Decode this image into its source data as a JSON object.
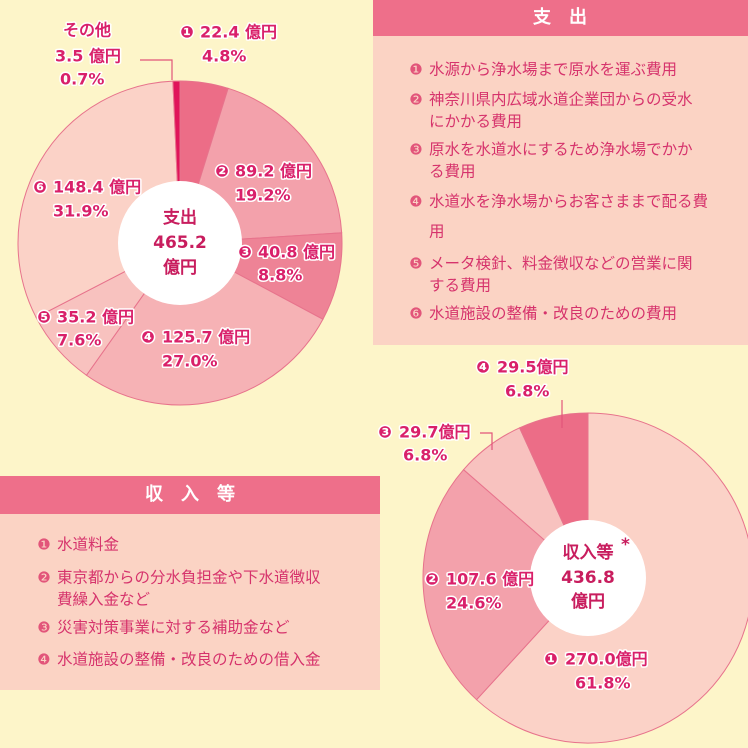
{
  "chart_data": [
    {
      "type": "pie",
      "center_title": "支出",
      "total": 465.2,
      "total_unit": "億円",
      "categories": [
        "❶",
        "❷",
        "❸",
        "❹",
        "❺",
        "❻",
        "その他"
      ],
      "values": [
        4.8,
        19.2,
        8.8,
        27.0,
        7.6,
        31.9,
        0.7
      ],
      "value_labels": [
        "4.8%",
        "19.2%",
        "8.8%",
        "27.0%",
        "7.6%",
        "31.9%",
        "0.7%"
      ],
      "amounts": [
        22.4,
        89.2,
        40.8,
        125.7,
        35.2,
        148.4,
        3.5
      ],
      "amount_labels": [
        "22.4 億円",
        "89.2 億円",
        "40.8 億円",
        "125.7 億円",
        "35.2 億円",
        "148.4 億円",
        "3.5 億円"
      ],
      "colors": [
        "#ec6d87",
        "#f3a1ab",
        "#ee8396",
        "#f6b2b5",
        "#f8c2bf",
        "#fbd2c7",
        "#e0145a"
      ]
    },
    {
      "type": "pie",
      "center_title": "収入等",
      "center_note": "*",
      "total": 436.8,
      "total_unit": "億円",
      "categories": [
        "❶",
        "❷",
        "❸",
        "❹"
      ],
      "values": [
        61.8,
        24.6,
        6.8,
        6.8
      ],
      "value_labels": [
        "61.8%",
        "24.6%",
        "6.8%",
        "6.8%"
      ],
      "amounts": [
        270.0,
        107.6,
        29.7,
        29.5
      ],
      "amount_labels": [
        "270.0億円",
        "107.6 億円",
        "29.7億円",
        "29.5億円"
      ],
      "colors": [
        "#fbd2c7",
        "#f3a1ab",
        "#f8c2bf",
        "#ec6d87"
      ]
    }
  ],
  "panels": [
    {
      "title": "支　出",
      "items": [
        [
          "水源から浄水場まで原水を運ぶ費用"
        ],
        [
          "神奈川県内広域水道企業団からの受水",
          "にかかる費用"
        ],
        [
          "原水を水道水にするため浄水場でかか",
          "る費用"
        ],
        [
          "水道水を浄水場からお客さままで配る費",
          "用"
        ],
        [
          "メータ検針、料金徴収などの営業に関",
          "する費用"
        ],
        [
          "水道施設の整備・改良のための費用"
        ]
      ]
    },
    {
      "title": "収　入　等",
      "items": [
        [
          "水道料金"
        ],
        [
          "東京都からの分水負担金や下水道徴収",
          "費繰入金など"
        ],
        [
          "災害対策事業に対する補助金など"
        ],
        [
          "水道施設の整備・改良のための借入金"
        ]
      ]
    }
  ]
}
